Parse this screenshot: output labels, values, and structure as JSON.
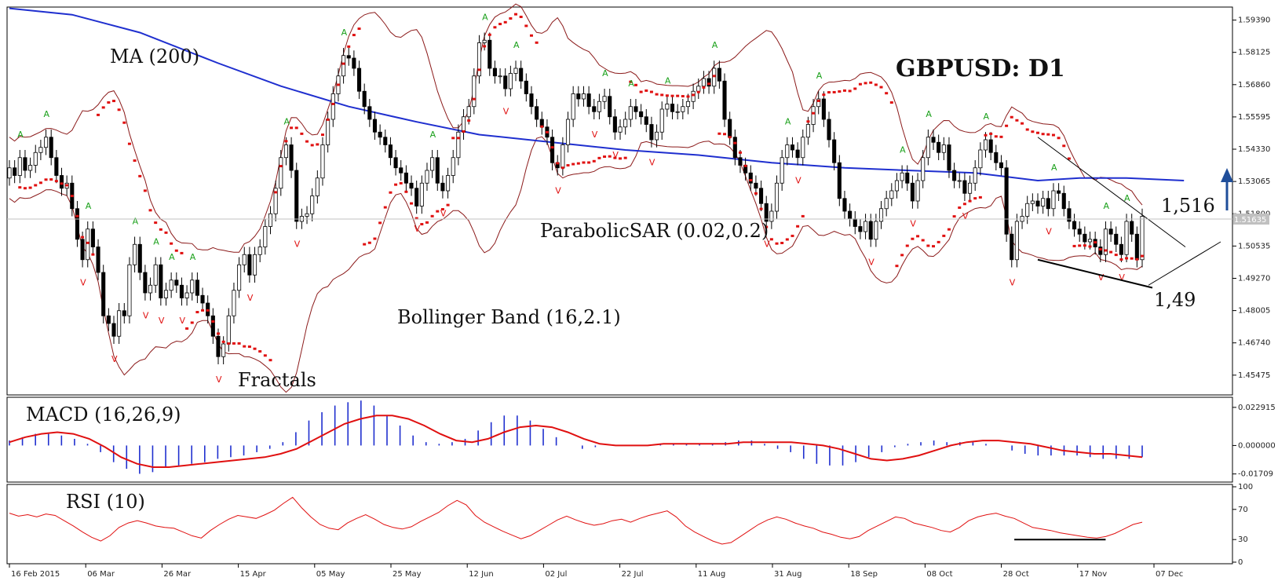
{
  "chart_data": [
    {
      "type": "candlestick",
      "title": "GBPUSD: D1",
      "x_labels": [
        "16 Feb 2015",
        "06 Mar",
        "26 Mar",
        "15 Apr",
        "05 May",
        "25 May",
        "12 Jun",
        "02 Jul",
        "22 Jul",
        "11 Aug",
        "31 Aug",
        "18 Sep",
        "08 Oct",
        "28 Oct",
        "17 Nov",
        "07 Dec"
      ],
      "y_ticks": [
        "1.59390",
        "1.58125",
        "1.56860",
        "1.55595",
        "1.54330",
        "1.53065",
        "1.51800",
        "1.50535",
        "1.49270",
        "1.48005",
        "1.46740",
        "1.45475"
      ],
      "ylim": [
        1.447,
        1.599
      ],
      "current_price_label": "1.51635",
      "closes": [
        1.536,
        1.533,
        1.54,
        1.535,
        1.537,
        1.542,
        1.544,
        1.548,
        1.54,
        1.533,
        1.528,
        1.53,
        1.52,
        1.508,
        1.5,
        1.512,
        1.505,
        1.495,
        1.478,
        1.475,
        1.47,
        1.48,
        1.478,
        1.498,
        1.506,
        1.495,
        1.487,
        1.49,
        1.498,
        1.485,
        1.488,
        1.492,
        1.49,
        1.485,
        1.487,
        1.492,
        1.486,
        1.483,
        1.478,
        1.47,
        1.462,
        1.467,
        1.478,
        1.488,
        1.498,
        1.502,
        1.494,
        1.502,
        1.505,
        1.513,
        1.518,
        1.528,
        1.54,
        1.545,
        1.535,
        1.515,
        1.517,
        1.518,
        1.525,
        1.532,
        1.545,
        1.555,
        1.565,
        1.572,
        1.58,
        1.579,
        1.575,
        1.566,
        1.56,
        1.555,
        1.55,
        1.548,
        1.545,
        1.54,
        1.536,
        1.534,
        1.53,
        1.528,
        1.521,
        1.53,
        1.535,
        1.54,
        1.53,
        1.527,
        1.533,
        1.54,
        1.55,
        1.556,
        1.56,
        1.572,
        1.585,
        1.586,
        1.575,
        1.572,
        1.572,
        1.567,
        1.573,
        1.575,
        1.57,
        1.565,
        1.56,
        1.555,
        1.552,
        1.548,
        1.538,
        1.536,
        1.545,
        1.555,
        1.565,
        1.563,
        1.565,
        1.56,
        1.558,
        1.562,
        1.564,
        1.556,
        1.55,
        1.552,
        1.555,
        1.56,
        1.558,
        1.556,
        1.553,
        1.547,
        1.55,
        1.559,
        1.561,
        1.558,
        1.558,
        1.56,
        1.562,
        1.566,
        1.568,
        1.571,
        1.568,
        1.575,
        1.57,
        1.555,
        1.548,
        1.54,
        1.537,
        1.534,
        1.53,
        1.528,
        1.522,
        1.515,
        1.519,
        1.53,
        1.54,
        1.545,
        1.543,
        1.54,
        1.548,
        1.553,
        1.56,
        1.563,
        1.555,
        1.547,
        1.538,
        1.524,
        1.519,
        1.516,
        1.513,
        1.511,
        1.515,
        1.508,
        1.515,
        1.52,
        1.524,
        1.527,
        1.531,
        1.534,
        1.53,
        1.523,
        1.531,
        1.54,
        1.548,
        1.546,
        1.542,
        1.545,
        1.535,
        1.531,
        1.531,
        1.526,
        1.53,
        1.536,
        1.543,
        1.547,
        1.542,
        1.538,
        1.536,
        1.51,
        1.5,
        1.515,
        1.517,
        1.522,
        1.523,
        1.521,
        1.524,
        1.52,
        1.527,
        1.526,
        1.52,
        1.515,
        1.512,
        1.51,
        1.507,
        1.508,
        1.505,
        1.502,
        1.512,
        1.51,
        1.506,
        1.502,
        1.515,
        1.51,
        1.5,
        1.517
      ],
      "ma200": [
        [
          1.5985,
          0
        ],
        [
          1.596,
          12
        ],
        [
          1.589,
          25
        ],
        [
          1.577,
          40
        ],
        [
          1.568,
          52
        ],
        [
          1.56,
          65
        ],
        [
          1.554,
          78
        ],
        [
          1.549,
          90
        ],
        [
          1.546,
          104
        ],
        [
          1.543,
          118
        ],
        [
          1.541,
          132
        ],
        [
          1.538,
          146
        ],
        [
          1.536,
          160
        ],
        [
          1.535,
          172
        ],
        [
          1.534,
          185
        ],
        [
          1.531,
          197
        ],
        [
          1.532,
          205
        ],
        [
          1.532,
          214
        ],
        [
          1.531,
          225
        ]
      ],
      "series": [
        {
          "name": "MA (200)"
        },
        {
          "name": "ParabolicSAR (0.02,0.2)"
        },
        {
          "name": "Bollinger Band (16,2.1)"
        },
        {
          "name": "Fractals"
        }
      ],
      "annotations": [
        {
          "text": "1,516"
        },
        {
          "text": "1,49"
        }
      ]
    },
    {
      "type": "histogram+line",
      "name": "MACD (16,26,9)",
      "y_ticks": [
        "0.022915",
        "0.000000",
        "-0.01709"
      ],
      "ylim": [
        -0.0215,
        0.0285
      ],
      "histogram": [
        0.003,
        0.005,
        0.007,
        0.007,
        0.006,
        0.004,
        0.001,
        -0.004,
        -0.01,
        -0.014,
        -0.017,
        -0.016,
        -0.013,
        -0.012,
        -0.011,
        -0.01,
        -0.008,
        -0.007,
        -0.006,
        -0.004,
        -0.002,
        0.002,
        0.008,
        0.015,
        0.02,
        0.024,
        0.026,
        0.027,
        0.024,
        0.018,
        0.012,
        0.006,
        0.002,
        0.001,
        0.002,
        0.004,
        0.009,
        0.014,
        0.018,
        0.018,
        0.015,
        0.01,
        0.005,
        0.0,
        -0.002,
        -0.001,
        0.0,
        0.0,
        0.0,
        0.0,
        0.001,
        0.001,
        0.001,
        0.001,
        0.001,
        0.002,
        0.003,
        0.003,
        0.001,
        -0.002,
        -0.004,
        -0.008,
        -0.011,
        -0.012,
        -0.012,
        -0.01,
        -0.007,
        -0.004,
        -0.001,
        0.001,
        0.002,
        0.003,
        0.002,
        0.002,
        0.002,
        0.001,
        0.0,
        -0.003,
        -0.005,
        -0.006,
        -0.006,
        -0.006,
        -0.006,
        -0.007,
        -0.008,
        -0.008,
        -0.008,
        -0.007
      ],
      "signal": [
        0.002,
        0.005,
        0.007,
        0.008,
        0.007,
        0.004,
        -0.001,
        -0.007,
        -0.011,
        -0.013,
        -0.013,
        -0.012,
        -0.011,
        -0.01,
        -0.009,
        -0.008,
        -0.007,
        -0.005,
        -0.002,
        0.003,
        0.008,
        0.013,
        0.016,
        0.018,
        0.018,
        0.016,
        0.012,
        0.007,
        0.003,
        0.002,
        0.004,
        0.008,
        0.011,
        0.012,
        0.011,
        0.008,
        0.004,
        0.001,
        0.0,
        0.0,
        0.0,
        0.001,
        0.001,
        0.001,
        0.001,
        0.001,
        0.002,
        0.002,
        0.002,
        0.002,
        0.001,
        0.0,
        -0.002,
        -0.005,
        -0.008,
        -0.009,
        -0.008,
        -0.006,
        -0.003,
        0.0,
        0.002,
        0.003,
        0.003,
        0.002,
        0.001,
        -0.001,
        -0.003,
        -0.004,
        -0.005,
        -0.005,
        -0.006,
        -0.007
      ]
    },
    {
      "type": "line",
      "name": "RSI (10)",
      "y_ticks": [
        "100",
        "70",
        "30",
        "0"
      ],
      "ylim": [
        0,
        100
      ],
      "values": [
        65,
        61,
        63,
        60,
        64,
        62,
        55,
        48,
        40,
        33,
        28,
        35,
        46,
        52,
        55,
        52,
        48,
        46,
        45,
        40,
        35,
        32,
        42,
        50,
        57,
        62,
        60,
        58,
        63,
        69,
        78,
        86,
        72,
        60,
        50,
        45,
        43,
        52,
        58,
        63,
        57,
        50,
        46,
        44,
        47,
        54,
        60,
        66,
        75,
        82,
        76,
        62,
        53,
        47,
        41,
        36,
        31,
        35,
        42,
        49,
        56,
        61,
        56,
        52,
        49,
        51,
        55,
        57,
        53,
        58,
        62,
        65,
        68,
        60,
        48,
        40,
        34,
        28,
        24,
        26,
        34,
        42,
        50,
        56,
        60,
        57,
        52,
        48,
        45,
        40,
        37,
        33,
        31,
        34,
        42,
        48,
        54,
        60,
        58,
        52,
        49,
        46,
        42,
        40,
        46,
        55,
        60,
        63,
        65,
        61,
        58,
        52,
        46,
        44,
        42,
        39,
        37,
        35,
        33,
        32,
        34,
        38,
        44,
        50,
        53
      ],
      "support_line": [
        30,
        30
      ]
    }
  ]
}
